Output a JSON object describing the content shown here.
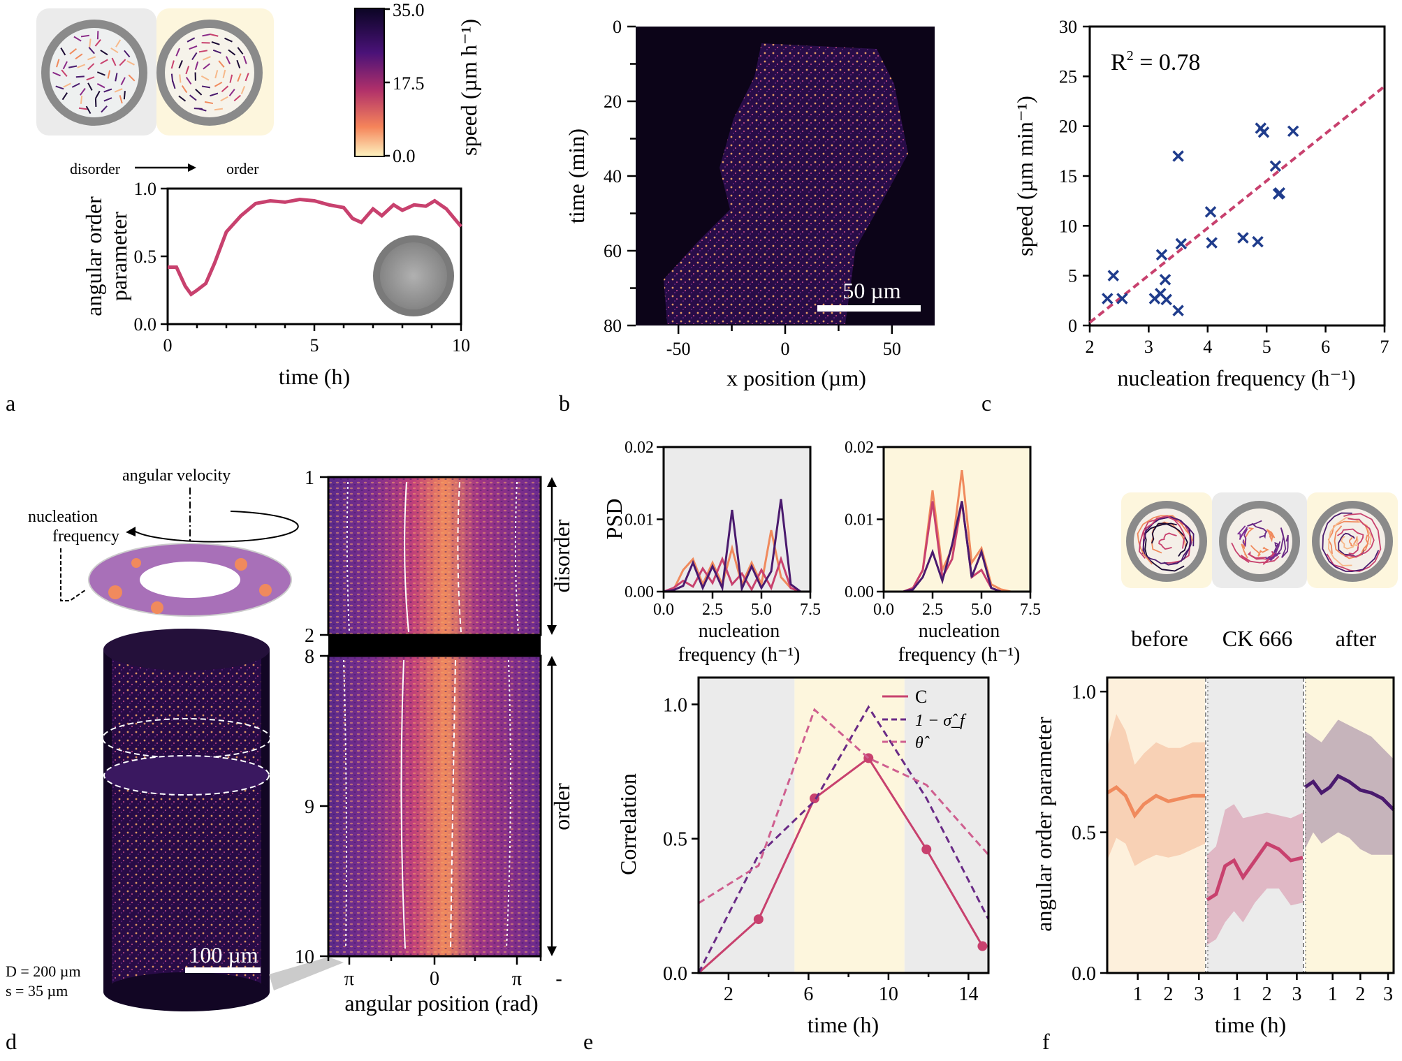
{
  "panel_labels": [
    "a",
    "b",
    "c",
    "d",
    "e",
    "f"
  ],
  "colors": {
    "magenta": "#c8416e",
    "navy": "#1f3c8c",
    "purple": "#6a2a86",
    "salmon": "#f08a5d",
    "darkpurple": "#4a1a6e",
    "pink": "#cf5f8f",
    "gray_bg": "#ebebeb",
    "yellow_bg": "#fdf6dd"
  },
  "panel_a": {
    "inset_labels": {
      "disorder": "disorder",
      "order": "order"
    },
    "colorbar": {
      "ticks": [
        "35.0",
        "17.5",
        "0.0"
      ],
      "label": "speed (µm h⁻¹)"
    }
  },
  "panel_b": {
    "scalebar": "50 µm",
    "xticks": [
      "-50",
      "0",
      "50"
    ],
    "yticks": [
      "0",
      "20",
      "40",
      "60",
      "80"
    ],
    "xlabel": "x position (µm)",
    "ylabel": "time (min)"
  },
  "panel_c": {
    "r2_base": "R",
    "r2_sup": "2",
    "r2_rest": " = 0.78"
  },
  "panel_d": {
    "labels": {
      "angular_velocity": "angular velocity",
      "nucleation_1": "nucleation",
      "nucleation_2": "frequency",
      "scalebar": "100 µm",
      "D": "D = 200 µm",
      "s": "s =   35 µm"
    },
    "kymo_yticks": [
      "1",
      "2",
      "8",
      "9",
      "10"
    ],
    "kymo_xticks": [
      "π",
      "0",
      "π",
      "-"
    ],
    "xlabel": "angular position (rad)",
    "side_labels": {
      "top": "disorder",
      "bottom": "order"
    }
  },
  "panel_e_psd": {
    "ylabel": "PSD",
    "xlabel_line1": "nucleation",
    "xlabel_line2": "frequency (h⁻¹)",
    "yticks": [
      "0.00",
      "0.01",
      "0.02"
    ],
    "xticks": [
      "0.0",
      "2.5",
      "5.0",
      "7.5"
    ]
  },
  "panel_e_legend": {
    "c": "C",
    "sigma": "1 − σ̂_f",
    "theta": "θ̂"
  },
  "panel_f": {
    "conditions": [
      "before",
      "CK 666",
      "after"
    ],
    "xticks": [
      "1",
      "2",
      "3",
      "1",
      "2",
      "3",
      "1",
      "2",
      "3"
    ]
  },
  "chart_data": [
    {
      "id": "a",
      "type": "line",
      "title": "",
      "xlabel": "time (h)",
      "ylabel": "angular order parameter",
      "xlim": [
        0,
        10
      ],
      "ylim": [
        0,
        1
      ],
      "xticks": [
        0,
        5,
        10
      ],
      "yticks": [
        0.0,
        0.5,
        1.0
      ],
      "ytick_labels": [
        "0.0",
        "0.5",
        "1.0"
      ],
      "series": [
        {
          "name": "angular order parameter",
          "x": [
            0,
            0.3,
            0.6,
            0.8,
            1.0,
            1.3,
            1.6,
            2.0,
            2.5,
            3.0,
            3.5,
            4.0,
            4.5,
            5.0,
            5.5,
            6.0,
            6.3,
            6.6,
            7.0,
            7.3,
            7.7,
            8.0,
            8.4,
            8.8,
            9.1,
            9.5,
            10.0
          ],
          "y": [
            0.42,
            0.42,
            0.28,
            0.22,
            0.25,
            0.3,
            0.45,
            0.68,
            0.8,
            0.89,
            0.91,
            0.9,
            0.92,
            0.91,
            0.88,
            0.86,
            0.78,
            0.75,
            0.85,
            0.8,
            0.88,
            0.84,
            0.88,
            0.87,
            0.91,
            0.85,
            0.72
          ]
        }
      ]
    },
    {
      "id": "c",
      "type": "scatter",
      "xlabel": "nucleation frequency (h⁻¹)",
      "ylabel": "speed (µm min⁻¹)",
      "xlim": [
        2,
        7
      ],
      "ylim": [
        0,
        30
      ],
      "xticks": [
        2,
        3,
        4,
        5,
        6,
        7
      ],
      "yticks": [
        0,
        5,
        10,
        15,
        20,
        25,
        30
      ],
      "points": {
        "x": [
          2.3,
          2.4,
          2.55,
          3.1,
          3.2,
          3.22,
          3.28,
          3.3,
          3.5,
          3.5,
          3.55,
          4.05,
          4.07,
          4.6,
          4.85,
          4.9,
          4.95,
          5.15,
          5.2,
          5.22,
          5.45
        ],
        "y": [
          2.7,
          5.0,
          2.7,
          2.7,
          3.2,
          7.1,
          4.6,
          2.6,
          17.0,
          1.5,
          8.2,
          11.4,
          8.3,
          8.8,
          8.4,
          19.8,
          19.4,
          16.0,
          13.2,
          13.3,
          19.5
        ]
      },
      "fit": {
        "x": [
          2,
          7
        ],
        "y": [
          0.3,
          24.0
        ]
      },
      "annotation": "R² = 0.78"
    },
    {
      "id": "e_psd_disorder",
      "type": "line",
      "xlim": [
        0,
        7.5
      ],
      "ylim": [
        0,
        0.02
      ],
      "xticks": [
        0,
        2.5,
        5,
        7.5
      ],
      "yticks": [
        0,
        0.01,
        0.02
      ],
      "x": [
        0,
        0.5,
        1,
        1.5,
        2,
        2.5,
        3,
        3.5,
        4,
        4.5,
        5,
        5.5,
        6,
        6.5,
        7
      ],
      "series": [
        {
          "name": "salmon",
          "values": [
            0,
            0.0002,
            0.003,
            0.0045,
            0.001,
            0.004,
            0.001,
            0.006,
            0.001,
            0.004,
            0.001,
            0.0085,
            0.002,
            0.0005,
            0
          ]
        },
        {
          "name": "pink",
          "values": [
            0,
            0.0005,
            0.0015,
            0.0007,
            0.0032,
            0.0012,
            0.0045,
            0.001,
            0.0025,
            0.0003,
            0.003,
            0.0005,
            0.0045,
            0.0005,
            0
          ]
        },
        {
          "name": "darkpurple",
          "values": [
            0,
            0.0002,
            0.0008,
            0.004,
            0.0005,
            0.0035,
            0.0005,
            0.0113,
            0.0004,
            0.0035,
            0.0005,
            0.0028,
            0.0128,
            0.001,
            0
          ]
        }
      ]
    },
    {
      "id": "e_psd_order",
      "type": "line",
      "xlim": [
        0,
        7.5
      ],
      "ylim": [
        0,
        0.02
      ],
      "xticks": [
        0,
        2.5,
        5,
        7.5
      ],
      "yticks": [
        0,
        0.01,
        0.02
      ],
      "x": [
        0,
        0.5,
        1,
        1.5,
        2,
        2.5,
        3,
        3.5,
        4,
        4.5,
        5,
        5.5,
        6,
        6.5,
        7
      ],
      "series": [
        {
          "name": "salmon",
          "values": [
            0,
            0,
            0,
            0.0005,
            0.003,
            0.014,
            0.003,
            0.006,
            0.0168,
            0.004,
            0.006,
            0.001,
            0.0003,
            0,
            0
          ]
        },
        {
          "name": "pink",
          "values": [
            0,
            0,
            0,
            0.0005,
            0.003,
            0.0125,
            0.002,
            0.0045,
            0.0125,
            0.002,
            0.003,
            0.0005,
            0,
            0,
            0
          ]
        },
        {
          "name": "darkpurple",
          "values": [
            0,
            0,
            0,
            0.0003,
            0.002,
            0.0055,
            0.0015,
            0.0065,
            0.0125,
            0.002,
            0.0055,
            0.0005,
            0,
            0,
            0
          ]
        }
      ]
    },
    {
      "id": "e_corr",
      "type": "line",
      "xlabel": "time (h)",
      "ylabel": "Correlation",
      "xlim": [
        0.5,
        15
      ],
      "ylim": [
        0,
        1.1
      ],
      "xticks": [
        2,
        6,
        10,
        14
      ],
      "yticks": [
        0,
        0.5,
        1.0
      ],
      "ytick_labels": [
        "0.0",
        "0.5",
        "1.0"
      ],
      "shading": [
        {
          "from": 0.5,
          "to": 5.3,
          "color": "gray"
        },
        {
          "from": 5.3,
          "to": 10.8,
          "color": "yellow"
        },
        {
          "from": 10.8,
          "to": 15,
          "color": "gray"
        }
      ],
      "series": [
        {
          "name": "C",
          "style": "solid-markers",
          "x": [
            0.5,
            3.5,
            6.3,
            9.0,
            11.9,
            14.7
          ],
          "y": [
            0.0,
            0.2,
            0.65,
            0.8,
            0.46,
            0.1
          ]
        },
        {
          "name": "1-sigma",
          "style": "dashed",
          "x": [
            0.5,
            3.5,
            6.3,
            9.0,
            11.9,
            15
          ],
          "y": [
            0.0,
            0.44,
            0.64,
            0.99,
            0.65,
            0.2
          ]
        },
        {
          "name": "theta",
          "style": "dashed",
          "x": [
            0.5,
            3.5,
            6.3,
            9.0,
            11.9,
            15
          ],
          "y": [
            0.26,
            0.4,
            0.98,
            0.8,
            0.7,
            0.44
          ]
        }
      ]
    },
    {
      "id": "f",
      "type": "area",
      "xlabel": "time (h)",
      "ylabel": "angular order parameter",
      "ylim": [
        0,
        1.05
      ],
      "yticks": [
        0,
        0.5,
        1.0
      ],
      "ytick_labels": [
        "0.0",
        "0.5",
        "1.0"
      ],
      "segments": [
        {
          "name": "before",
          "x": [
            0,
            0.3,
            0.6,
            0.9,
            1.2,
            1.6,
            2.0,
            2.4,
            2.8,
            3.2
          ],
          "mean": [
            0.64,
            0.66,
            0.63,
            0.56,
            0.6,
            0.63,
            0.61,
            0.62,
            0.63,
            0.63
          ],
          "lower": [
            0.4,
            0.48,
            0.46,
            0.38,
            0.4,
            0.42,
            0.41,
            0.42,
            0.44,
            0.46
          ],
          "upper": [
            0.8,
            0.92,
            0.86,
            0.74,
            0.78,
            0.82,
            0.8,
            0.8,
            0.82,
            0.82
          ]
        },
        {
          "name": "CK 666",
          "x": [
            0,
            0.3,
            0.6,
            0.9,
            1.2,
            1.6,
            2.0,
            2.4,
            2.8,
            3.2
          ],
          "mean": [
            0.26,
            0.28,
            0.38,
            0.4,
            0.34,
            0.4,
            0.46,
            0.44,
            0.4,
            0.41
          ],
          "lower": [
            0.1,
            0.12,
            0.18,
            0.22,
            0.18,
            0.25,
            0.3,
            0.3,
            0.24,
            0.25
          ],
          "upper": [
            0.42,
            0.45,
            0.58,
            0.6,
            0.55,
            0.56,
            0.57,
            0.56,
            0.55,
            0.57
          ]
        },
        {
          "name": "after",
          "x": [
            0,
            0.3,
            0.6,
            0.9,
            1.2,
            1.6,
            2.0,
            2.4,
            2.8,
            3.2
          ],
          "mean": [
            0.66,
            0.68,
            0.64,
            0.66,
            0.7,
            0.68,
            0.65,
            0.64,
            0.62,
            0.58
          ],
          "lower": [
            0.44,
            0.5,
            0.46,
            0.48,
            0.5,
            0.48,
            0.44,
            0.42,
            0.42,
            0.42
          ],
          "upper": [
            0.86,
            0.84,
            0.82,
            0.86,
            0.9,
            0.88,
            0.86,
            0.84,
            0.8,
            0.76
          ]
        }
      ]
    }
  ]
}
